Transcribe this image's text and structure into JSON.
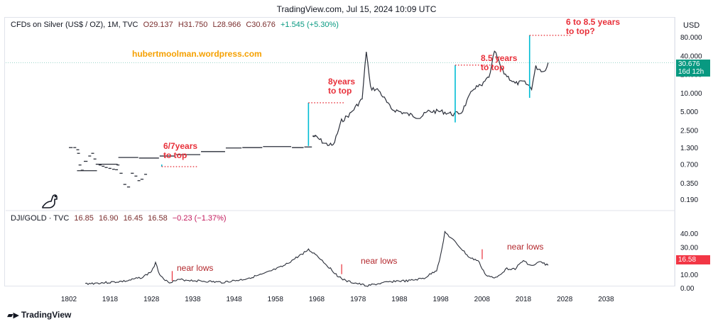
{
  "header": {
    "title": "TradingView.com, Jul 15, 2024 10:09 UTC"
  },
  "watermark": "hubertmoolman.wordpress.com",
  "branding": {
    "name": "TradingView"
  },
  "top_legend": {
    "symbol": "CFDs on Silver (US$ / OZ), 1M, TVC",
    "open": "O29.137",
    "high": "H31.750",
    "low": "L28.966",
    "close": "C30.676",
    "change": "+1.545 (+5.30%)"
  },
  "bottom_legend": {
    "symbol": "DJI/GOLD · TVC",
    "open": "16.85",
    "high": "16.90",
    "low": "16.45",
    "close": "16.58",
    "change": "−0.23 (−1.37%)"
  },
  "currency": "USD",
  "price_tags": {
    "silver_price": "30.676",
    "silver_countdown": "16d 12h",
    "ratio_price": "16.58"
  },
  "colors": {
    "accent_green": "#089981",
    "accent_red": "#f23645",
    "annotation": "#e8303a",
    "cyan_line": "#00bcd4",
    "watermark": "#f5a000"
  },
  "annotations": {
    "a1": [
      "6/7years",
      "to top"
    ],
    "a2": [
      "8years",
      "to top"
    ],
    "a3": [
      "8.5 years",
      "to top"
    ],
    "a4": [
      "6 to 8.5 years",
      "to top?"
    ],
    "low1": "near lows",
    "low2": "near lows",
    "low3": "near lows"
  },
  "chart_data": [
    {
      "type": "line",
      "title": "CFDs on Silver (US$ / OZ), 1M, TVC",
      "yscale": "log",
      "ylim": [
        0.15,
        110
      ],
      "xlim": [
        1796,
        2046
      ],
      "yticks": [
        0.19,
        0.35,
        0.7,
        1.3,
        2.5,
        5.0,
        10.0,
        20.0,
        40.0,
        80.0
      ],
      "ytick_labels": [
        "0.190",
        "0.350",
        "0.700",
        "1.300",
        "2.500",
        "5.000",
        "10.000",
        "20.000",
        "40.000",
        "80.000"
      ],
      "x": [
        1802,
        1808,
        1812,
        1813,
        1815,
        1818,
        1822,
        1828,
        1832,
        1835,
        1838,
        1842,
        1846,
        1850,
        1855,
        1860,
        1864,
        1866,
        1870,
        1875,
        1880,
        1885,
        1890,
        1894,
        1898,
        1903,
        1910,
        1915,
        1920,
        1925,
        1930,
        1934,
        1940,
        1946,
        1950,
        1955,
        1962,
        1965,
        1967,
        1968,
        1970,
        1972,
        1974,
        1976,
        1979,
        1980,
        1981,
        1983,
        1986,
        1990,
        1993,
        1995,
        1998,
        2001,
        2003,
        2006,
        2008,
        2010,
        2011,
        2013,
        2016,
        2018,
        2020,
        2021,
        2023,
        2024
      ],
      "y": [
        1.3,
        1.3,
        1.2,
        1.05,
        0.68,
        0.56,
        0.78,
        0.95,
        1.05,
        0.85,
        0.7,
        0.68,
        0.65,
        0.62,
        0.6,
        0.58,
        0.57,
        0.68,
        0.5,
        0.33,
        0.3,
        0.5,
        0.45,
        0.38,
        0.4,
        0.48,
        0.55,
        0.7,
        0.9,
        0.88,
        0.95,
        1.0,
        1.12,
        1.28,
        1.3,
        1.35,
        1.3,
        1.33,
        2.0,
        1.9,
        1.5,
        1.4,
        3.5,
        4.5,
        8.0,
        48.0,
        12.0,
        11.0,
        5.5,
        4.5,
        4.0,
        5.0,
        5.0,
        4.5,
        4.8,
        12.0,
        13.0,
        20.0,
        48.0,
        22.0,
        14.0,
        15.0,
        12.0,
        26.0,
        22.0,
        30.676
      ],
      "annotations": [
        {
          "text": "6/7years to top",
          "start_year": 1930.5,
          "target": 0.64
        },
        {
          "text": "8years to top",
          "start_year": 1966,
          "target": 6.9
        },
        {
          "text": "8.5 years to top",
          "start_year": 2001.5,
          "target": 28
        },
        {
          "text": "6 to 8.5 years to top?",
          "start_year": 2019.5,
          "target": 85
        }
      ],
      "last_value": 30.676
    },
    {
      "type": "line",
      "title": "DJI/GOLD · TVC",
      "ylim": [
        0,
        50
      ],
      "yticks": [
        0,
        10,
        20,
        30,
        40
      ],
      "ytick_labels": [
        "0.00",
        "10.00",
        "20.00",
        "30.00",
        "40.00"
      ],
      "xticks": [
        1802,
        1918,
        1928,
        1938,
        1948,
        1958,
        1968,
        1978,
        1988,
        1998,
        2008,
        2018,
        2028,
        2038
      ],
      "xtick_labels": [
        "1802",
        "1918",
        "1928",
        "1938",
        "1948",
        "1958",
        "1968",
        "1978",
        "1988",
        "1998",
        "2008",
        "2018",
        "2028",
        "2038"
      ],
      "x": [
        1912,
        1915,
        1918,
        1922,
        1926,
        1928,
        1929,
        1930,
        1932,
        1935,
        1940,
        1945,
        1950,
        1955,
        1960,
        1963,
        1966,
        1968,
        1970,
        1973,
        1975,
        1978,
        1980,
        1983,
        1987,
        1990,
        1994,
        1997,
        1998,
        1999,
        2000,
        2002,
        2005,
        2007,
        2009,
        2011,
        2014,
        2016,
        2018,
        2020,
        2022,
        2024
      ],
      "y": [
        3,
        3.5,
        4,
        5,
        8,
        12,
        18,
        10,
        4,
        6,
        5,
        4,
        6,
        10,
        16,
        22,
        28,
        24,
        18,
        9,
        5,
        3,
        1.5,
        3,
        5,
        5,
        7,
        13,
        24,
        41,
        38,
        32,
        22,
        20,
        9,
        7,
        14,
        14,
        20,
        16,
        19,
        16.58
      ],
      "annotations": [
        {
          "text": "near lows",
          "year": 1932
        },
        {
          "text": "near lows",
          "year": 1973
        },
        {
          "text": "near lows",
          "year": 2007
        }
      ],
      "last_value": 16.58
    }
  ]
}
